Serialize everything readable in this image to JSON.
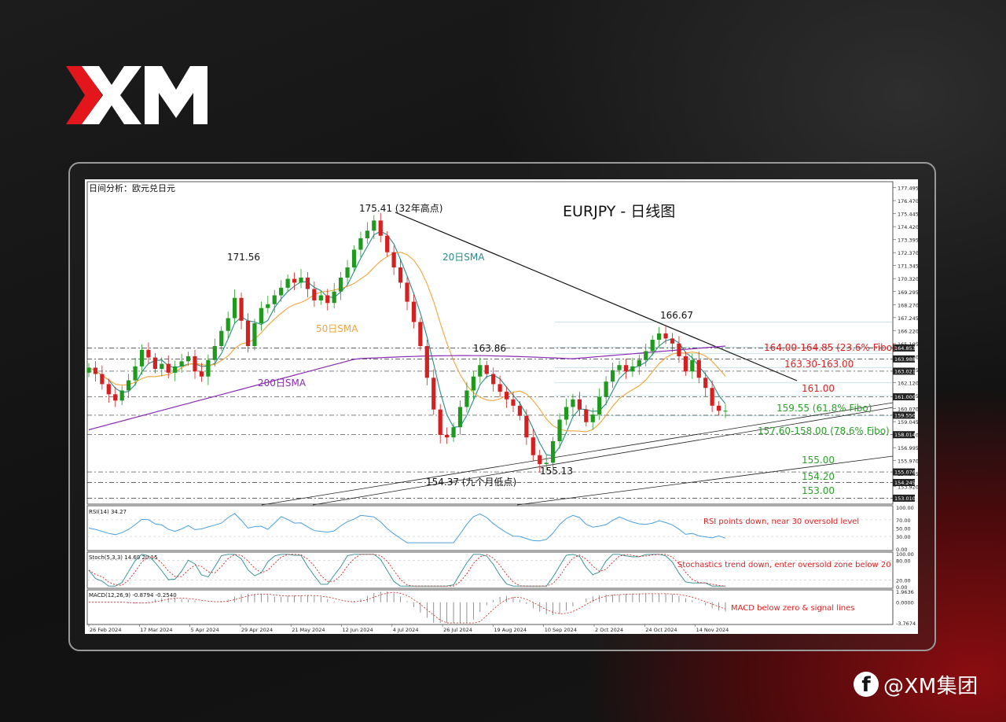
{
  "brand": {
    "logo_text": "XM",
    "footer_handle": "@XM集团"
  },
  "chart_data": {
    "type": "candlestick",
    "header_label": "日间分析：欧元兑日元",
    "title": "EURJPY - 日线图",
    "date_ticks": [
      "26 Feb 2024",
      "17 Mar 2024",
      "5 Apr 2024",
      "29 Apr 2024",
      "21 May 2024",
      "12 Jun 2024",
      "4 Jul 2024",
      "26 Jul 2024",
      "19 Aug 2024",
      "10 Sep 2024",
      "2 Oct 2024",
      "24 Oct 2024",
      "14 Nov 2024"
    ],
    "price_ticks": [
      "177.495",
      "176.470",
      "175.445",
      "174.420",
      "173.395",
      "172.370",
      "171.345",
      "170.320",
      "169.295",
      "168.270",
      "167.245",
      "166.220",
      "165.195",
      "164.170",
      "163.145",
      "162.120",
      "161.095",
      "160.070",
      "159.045",
      "158.020",
      "156.995",
      "155.970",
      "154.945",
      "153.920"
    ],
    "price_range": [
      152.6,
      177.9
    ],
    "price_tags": [
      {
        "label": "164.853",
        "price": 164.853
      },
      {
        "label": "163.988",
        "price": 163.988
      },
      {
        "label": "163.021",
        "price": 163.021
      },
      {
        "label": "161.000",
        "price": 161.0
      },
      {
        "label": "159.550",
        "price": 159.55
      },
      {
        "label": "158.014",
        "price": 158.014
      },
      {
        "label": "155.076",
        "price": 155.076
      },
      {
        "label": "154.245",
        "price": 154.245
      },
      {
        "label": "153.010",
        "price": 153.01
      }
    ],
    "close_series": [
      163.3,
      162.8,
      162.0,
      161.2,
      160.7,
      161.5,
      162.3,
      163.4,
      164.7,
      164.1,
      163.2,
      163.6,
      162.9,
      163.4,
      163.8,
      164.2,
      163.0,
      162.6,
      163.9,
      165.0,
      166.2,
      167.2,
      168.8,
      167.0,
      165.0,
      166.8,
      168.0,
      168.3,
      169.0,
      169.6,
      170.3,
      170.0,
      170.4,
      169.5,
      168.6,
      169.0,
      168.4,
      169.3,
      170.4,
      171.2,
      172.6,
      173.5,
      174.1,
      174.9,
      173.7,
      172.4,
      171.2,
      170.0,
      168.5,
      166.9,
      165.0,
      162.5,
      160.0,
      158.0,
      157.8,
      158.6,
      160.2,
      161.5,
      162.6,
      163.5,
      162.8,
      162.0,
      161.4,
      160.8,
      160.3,
      159.5,
      157.8,
      156.4,
      155.7,
      155.8,
      157.5,
      159.2,
      160.2,
      160.8,
      160.0,
      159.0,
      159.6,
      161.0,
      162.2,
      163.1,
      163.5,
      163.0,
      163.4,
      163.9,
      164.6,
      165.5,
      166.0,
      165.6,
      165.2,
      164.2,
      163.0,
      163.9,
      162.5,
      161.7,
      160.3,
      159.9,
      159.9
    ],
    "annotations": {
      "high_32y": "175.41 (32年高点)",
      "high_171": "171.56",
      "low_9m": "154.37 (九个月低点)",
      "low_155": "155.13",
      "peak_163": "163.86",
      "peak_166": "166.67"
    },
    "sma_labels": {
      "sma20": "20日SMA",
      "sma50": "50日SMA",
      "sma200": "200日SMA"
    },
    "levels": [
      {
        "label": "164.00-164.85 (23.6% Fibo)",
        "color": "#e02020"
      },
      {
        "label": "163.30-163.00",
        "color": "#e02020"
      },
      {
        "label": "161.00",
        "color": "#e02020"
      },
      {
        "label": "159.55 (61.8% Fibo)",
        "color": "#2aa02a"
      },
      {
        "label": "157.60-158.00 (78.6% Fibo)",
        "color": "#2aa02a"
      },
      {
        "label": "155.00",
        "color": "#2aa02a"
      },
      {
        "label": "154.20",
        "color": "#2aa02a"
      },
      {
        "label": "153.00",
        "color": "#2aa02a"
      }
    ],
    "colors": {
      "up": "#1f9a1f",
      "down": "#d42020",
      "sma20": "#2a8a8a",
      "sma50": "#f2a43a",
      "sma200": "#8a2ab4",
      "trend": "#111111"
    },
    "rsi": {
      "label": "RSI(14) 34.27",
      "ticks": [
        "100.00",
        "70.00",
        "50.00",
        "30.00",
        "0.00"
      ],
      "note": "RSI points down, near 30 oversold level"
    },
    "stoch": {
      "label": "Stoch(5,3,3) 14.69 20.15",
      "ticks": [
        "100.00",
        "80.00",
        "20.00",
        "0.00"
      ],
      "note": "Stochastics trend down, enter oversold zone below 20"
    },
    "macd": {
      "label": "MACD(12,26,9) -0.8794 -0.2540",
      "ticks": [
        "1.9636",
        "0.0000",
        "-3.7674"
      ],
      "note": "MACD below zero & signal lines"
    }
  }
}
